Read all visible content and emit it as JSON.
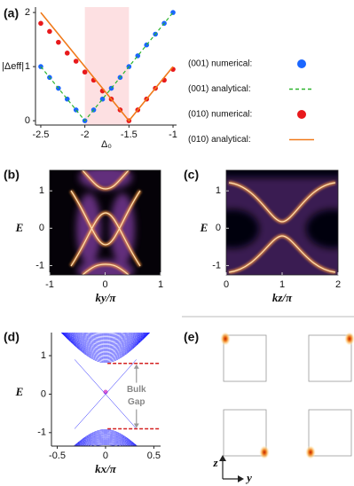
{
  "chart_data": [
    {
      "type": "line",
      "panel": "(a)",
      "xlabel": "Δ₀",
      "ylabel": "|Δeff|",
      "xlim": [
        -2.56,
        -0.96
      ],
      "ylim": [
        -0.08,
        2.1
      ],
      "xticks": [
        -2.5,
        -2,
        -1.5,
        -1
      ],
      "yticks": [
        0,
        1,
        2
      ],
      "shaded": [
        -2,
        -1.5
      ],
      "series": [
        {
          "name": "(001) numerical:",
          "color": "#1a66ff",
          "style": "markers",
          "x": [
            -2.5,
            -2.4,
            -2.3,
            -2.2,
            -2.1,
            -2.0,
            -1.9,
            -1.8,
            -1.7,
            -1.6,
            -1.5,
            -1.4,
            -1.3,
            -1.2,
            -1.1,
            -1.0
          ],
          "values": [
            1.0,
            0.8,
            0.6,
            0.4,
            0.2,
            0.0,
            0.2,
            0.4,
            0.6,
            0.8,
            1.0,
            1.2,
            1.4,
            1.6,
            1.8,
            2.0
          ]
        },
        {
          "name": "(001) analytical:",
          "color": "#2db52d",
          "style": "dashed",
          "x": [
            -2.5,
            -2.0,
            -1.0
          ],
          "values": [
            1.0,
            0.0,
            2.0
          ]
        },
        {
          "name": "(010) numerical:",
          "color": "#e8191c",
          "style": "markers",
          "x": [
            -2.5,
            -2.4,
            -2.3,
            -2.2,
            -2.1,
            -2.0,
            -1.9,
            -1.8,
            -1.7,
            -1.6,
            -1.5,
            -1.4,
            -1.3,
            -1.2,
            -1.1,
            -1.0
          ],
          "values": [
            1.8,
            1.65,
            1.45,
            1.25,
            1.1,
            0.9,
            0.75,
            0.55,
            0.4,
            0.2,
            0.0,
            0.2,
            0.4,
            0.6,
            0.75,
            0.95
          ]
        },
        {
          "name": "(010) analytical:",
          "color": "#f07a1a",
          "style": "solid",
          "x": [
            -2.5,
            -1.5,
            -1.0
          ],
          "values": [
            2.0,
            0.0,
            1.0
          ]
        }
      ]
    },
    {
      "type": "heatmap",
      "panel": "(b)",
      "xlabel": "ky/π",
      "ylabel": "E",
      "xlim": [
        -1,
        1
      ],
      "ylim": [
        -1.25,
        1.55
      ],
      "xticks": [
        -1,
        0,
        1
      ],
      "yticks": [
        -1,
        0,
        1
      ]
    },
    {
      "type": "heatmap",
      "panel": "(c)",
      "xlabel": "kz/π",
      "ylabel": "E",
      "xlim": [
        0,
        2
      ],
      "ylim": [
        -1.25,
        1.55
      ],
      "xticks": [
        0,
        1,
        2
      ],
      "yticks": [
        -1,
        0,
        1
      ]
    },
    {
      "type": "band",
      "panel": "(d)",
      "xlabel": "kx/π",
      "ylabel": "E",
      "color": "#1a1aff",
      "xlim": [
        -0.56,
        0.57
      ],
      "ylim": [
        -1.35,
        1.6
      ],
      "xticks": [
        -0.5,
        0,
        0.5
      ],
      "yticks": [
        -1,
        0,
        1
      ],
      "gap_edges": [
        0.8,
        -0.9
      ],
      "annotation": [
        "Bulk",
        "Gap"
      ]
    },
    {
      "type": "heatmap",
      "panel": "(e)",
      "xlabel": "y",
      "ylabel": "z"
    }
  ]
}
